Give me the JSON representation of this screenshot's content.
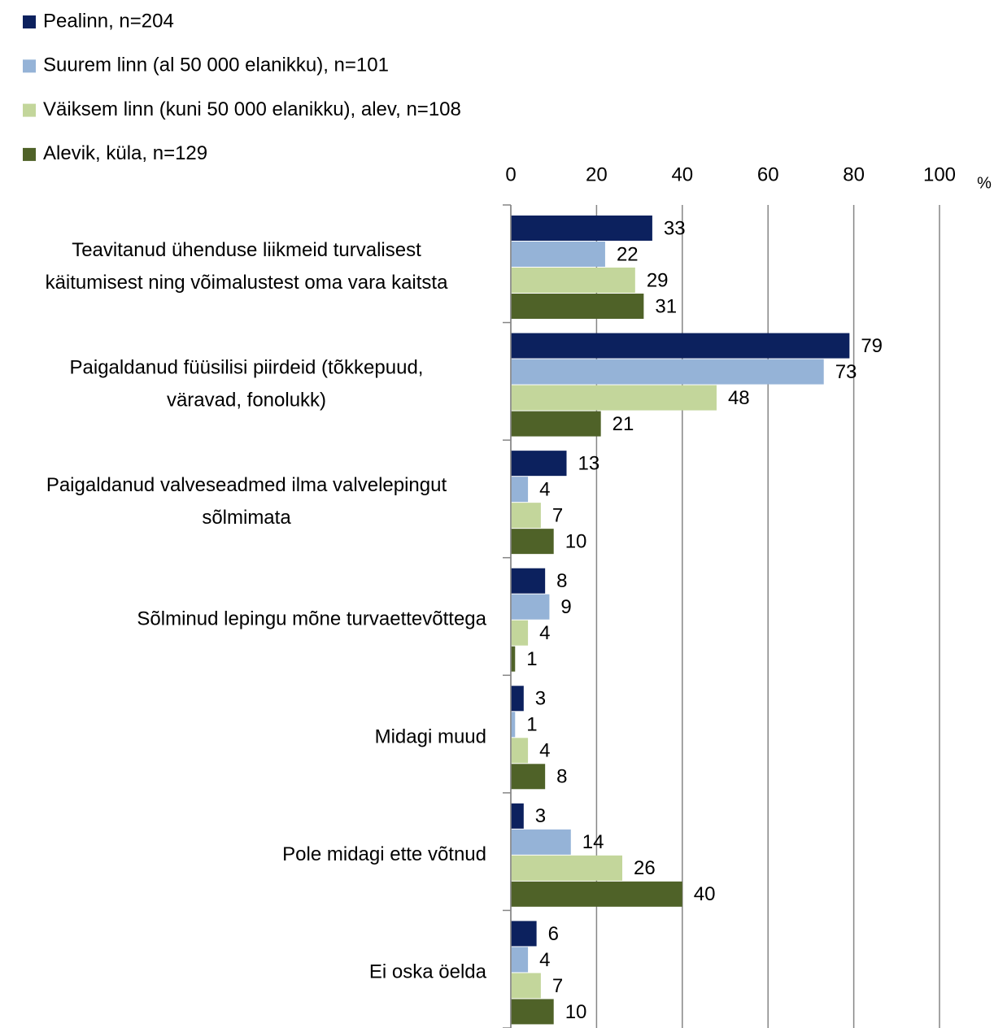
{
  "chart_data": {
    "type": "bar",
    "orientation": "horizontal",
    "unit_label": "%",
    "categories": [
      "Teavitanud ühenduse liikmeid turvalisest\nkäitumisest ning võimalustest oma vara kaitsta",
      "Paigaldanud füüsilisi piirdeid (tõkkepuud,\nväravad, fonolukk)",
      "Paigaldanud valveseadmed ilma valvelepingut\nsõlmimata",
      "Sõlminud lepingu mõne turvaettevõttega",
      "Midagi muud",
      "Pole midagi ette võtnud",
      "Ei oska öelda"
    ],
    "series": [
      {
        "name": "Pealinn, n=204",
        "color": "#0c215e",
        "values": [
          33,
          79,
          13,
          8,
          3,
          3,
          6
        ]
      },
      {
        "name": "Suurem linn (al 50 000 elanikku), n=101",
        "color": "#95b3d7",
        "values": [
          22,
          73,
          4,
          9,
          1,
          14,
          4
        ]
      },
      {
        "name": "Väiksem linn (kuni 50 000 elanikku), alev, n=108",
        "color": "#c3d69b",
        "values": [
          29,
          48,
          7,
          4,
          4,
          26,
          7
        ]
      },
      {
        "name": "Alevik, küla, n=129",
        "color": "#4f6228",
        "values": [
          31,
          21,
          10,
          1,
          8,
          40,
          10
        ]
      }
    ],
    "xlim": [
      0,
      100
    ],
    "xticks": [
      0,
      20,
      40,
      60,
      80,
      100
    ],
    "grid": true,
    "legend": "top-left"
  }
}
